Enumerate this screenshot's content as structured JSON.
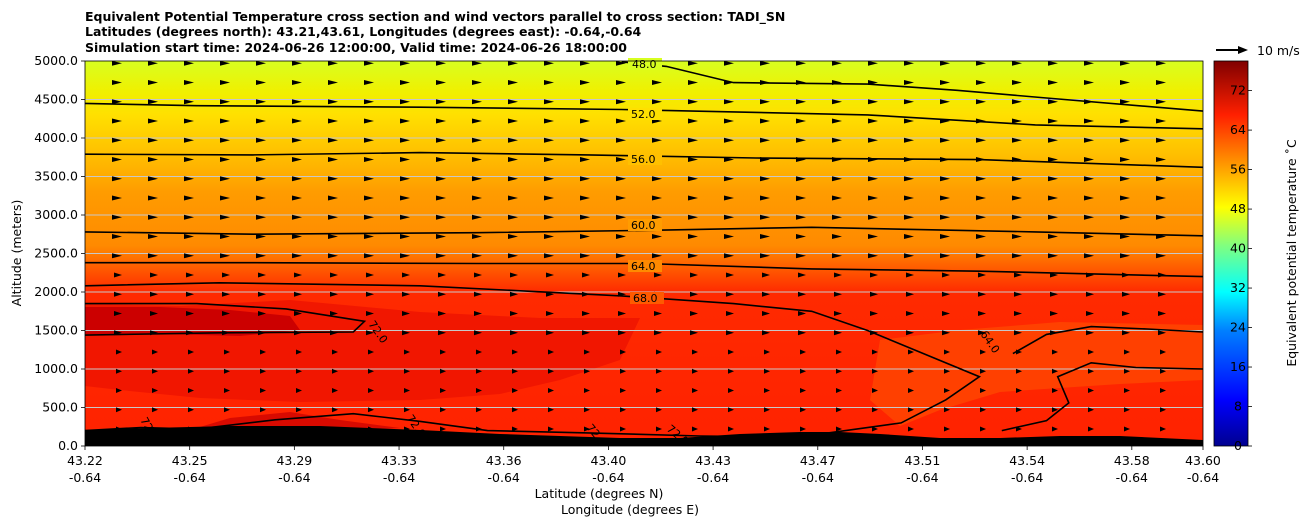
{
  "chart_data": {
    "type": "contour-cross-section",
    "title_lines": [
      "Equivalent Potential Temperature cross section and wind vectors parallel to cross section: TADI_SN",
      "Latitudes (degrees north): 43.21,43.61, Longitudes (degrees east): -0.64,-0.64",
      "Simulation start time: 2024-06-26 12:00:00, Valid time: 2024-06-26 18:00:00"
    ],
    "xlabel_line1": "Latitude (degrees N)",
    "xlabel_line2": "Longitude (degrees E)",
    "ylabel": "Altitude (meters)",
    "colorbar_label": "Equivalent potential temperature ˚C",
    "quiver_key_label": "10 m/s",
    "x_ticks": [
      {
        "lat": "43.22",
        "lon": "-0.64"
      },
      {
        "lat": "43.25",
        "lon": "-0.64"
      },
      {
        "lat": "43.29",
        "lon": "-0.64"
      },
      {
        "lat": "43.33",
        "lon": "-0.64"
      },
      {
        "lat": "43.36",
        "lon": "-0.64"
      },
      {
        "lat": "43.40",
        "lon": "-0.64"
      },
      {
        "lat": "43.43",
        "lon": "-0.64"
      },
      {
        "lat": "43.47",
        "lon": "-0.64"
      },
      {
        "lat": "43.51",
        "lon": "-0.64"
      },
      {
        "lat": "43.54",
        "lon": "-0.64"
      },
      {
        "lat": "43.58",
        "lon": "-0.64"
      },
      {
        "lat": "43.60",
        "lon": "-0.64"
      }
    ],
    "y_ticks": [
      "0.0",
      "500.0",
      "1000.0",
      "1500.0",
      "2000.0",
      "2500.0",
      "3000.0",
      "3500.0",
      "4000.0",
      "4500.0",
      "5000.0"
    ],
    "ylim": [
      0,
      5000
    ],
    "colorbar_ticks": [
      "0",
      "8",
      "16",
      "24",
      "32",
      "40",
      "48",
      "56",
      "64",
      "72"
    ],
    "colorbar_range": [
      0,
      78
    ],
    "grid": "horizontal",
    "contour_labels": [
      "48.0",
      "52.0",
      "56.0",
      "60.0",
      "64.0",
      "68.0",
      "72.0",
      "72.0",
      "72.0",
      "64.0",
      "72.0",
      "72.0"
    ],
    "isolines": [
      {
        "level": 48,
        "points": [
          [
            0.48,
            4990
          ],
          [
            0.52,
            4930
          ],
          [
            0.58,
            4720
          ],
          [
            0.7,
            4700
          ],
          [
            0.78,
            4620
          ],
          [
            0.86,
            4520
          ],
          [
            1.0,
            4350
          ]
        ]
      },
      {
        "level": 52,
        "points": [
          [
            0.0,
            4450
          ],
          [
            0.1,
            4420
          ],
          [
            0.3,
            4400
          ],
          [
            0.48,
            4370
          ],
          [
            0.7,
            4300
          ],
          [
            0.85,
            4170
          ],
          [
            1.0,
            4120
          ]
        ]
      },
      {
        "level": 56,
        "points": [
          [
            0.0,
            3790
          ],
          [
            0.15,
            3780
          ],
          [
            0.3,
            3810
          ],
          [
            0.45,
            3780
          ],
          [
            0.6,
            3740
          ],
          [
            0.8,
            3720
          ],
          [
            1.0,
            3620
          ]
        ]
      },
      {
        "level": 60,
        "points": [
          [
            0.0,
            2780
          ],
          [
            0.15,
            2750
          ],
          [
            0.35,
            2770
          ],
          [
            0.5,
            2800
          ],
          [
            0.65,
            2840
          ],
          [
            0.85,
            2780
          ],
          [
            1.0,
            2730
          ]
        ]
      },
      {
        "level": 64,
        "points": [
          [
            0.0,
            2380
          ],
          [
            0.15,
            2380
          ],
          [
            0.35,
            2370
          ],
          [
            0.5,
            2370
          ],
          [
            0.65,
            2300
          ],
          [
            0.8,
            2270
          ],
          [
            1.0,
            2200
          ]
        ]
      },
      {
        "level": 68,
        "points": [
          [
            0.0,
            2080
          ],
          [
            0.12,
            2120
          ],
          [
            0.3,
            2080
          ],
          [
            0.48,
            1950
          ],
          [
            0.58,
            1850
          ],
          [
            0.65,
            1750
          ],
          [
            0.7,
            1500
          ],
          [
            0.75,
            1200
          ],
          [
            0.8,
            900
          ],
          [
            0.77,
            600
          ],
          [
            0.73,
            300
          ],
          [
            0.66,
            160
          ],
          [
            0.6,
            80
          ]
        ]
      },
      {
        "level": 72,
        "points": [
          [
            0.0,
            1850
          ],
          [
            0.1,
            1850
          ],
          [
            0.18,
            1780
          ],
          [
            0.25,
            1620
          ],
          [
            0.24,
            1480
          ],
          [
            0.12,
            1470
          ],
          [
            0.0,
            1440
          ]
        ]
      },
      {
        "level": 72,
        "points": [
          [
            0.0,
            200
          ],
          [
            0.05,
            240
          ],
          [
            0.1,
            220
          ],
          [
            0.17,
            340
          ],
          [
            0.24,
            420
          ],
          [
            0.3,
            320
          ],
          [
            0.36,
            200
          ],
          [
            0.45,
            170
          ],
          [
            0.55,
            130
          ],
          [
            0.62,
            120
          ]
        ]
      },
      {
        "level": 64,
        "points": [
          [
            0.83,
            1200
          ],
          [
            0.86,
            1450
          ],
          [
            0.9,
            1550
          ],
          [
            0.95,
            1520
          ],
          [
            1.0,
            1480
          ]
        ]
      },
      {
        "level": 64,
        "points": [
          [
            0.82,
            200
          ],
          [
            0.86,
            330
          ],
          [
            0.88,
            560
          ],
          [
            0.87,
            900
          ],
          [
            0.9,
            1080
          ],
          [
            0.94,
            1020
          ],
          [
            1.0,
            1000
          ]
        ]
      }
    ]
  }
}
